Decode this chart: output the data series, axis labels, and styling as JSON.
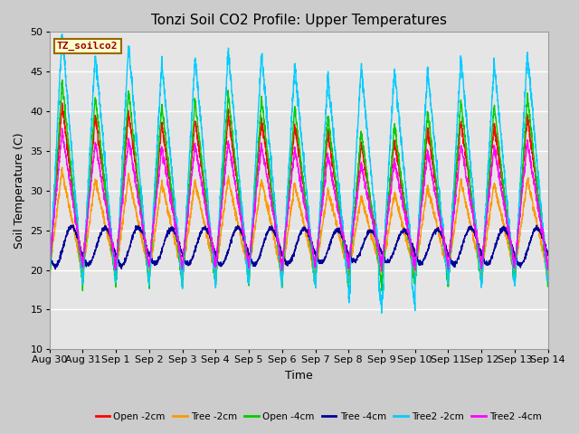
{
  "title": "Tonzi Soil CO2 Profile: Upper Temperatures",
  "xlabel": "Time",
  "ylabel": "Soil Temperature (C)",
  "ylim": [
    10,
    50
  ],
  "background_color": "#cccccc",
  "plot_bg_color": "#e5e5e5",
  "grid_color": "#ffffff",
  "label_box_text": "TZ_soilco2",
  "label_box_bg": "#ffffcc",
  "label_box_border": "#996600",
  "label_box_text_color": "#990000",
  "x_tick_labels": [
    "Aug 30",
    "Aug 31",
    "Sep 1",
    "Sep 2",
    "Sep 3",
    "Sep 4",
    "Sep 5",
    "Sep 6",
    "Sep 7",
    "Sep 8",
    "Sep 9",
    "Sep 10",
    "Sep 11",
    "Sep 12",
    "Sep 13",
    "Sep 14"
  ],
  "series": [
    {
      "label": "Open -2cm",
      "color": "#ff0000"
    },
    {
      "label": "Tree -2cm",
      "color": "#ff9900"
    },
    {
      "label": "Open -4cm",
      "color": "#00cc00"
    },
    {
      "label": "Tree -4cm",
      "color": "#000099"
    },
    {
      "label": "Tree2 -2cm",
      "color": "#00ccff"
    },
    {
      "label": "Tree2 -4cm",
      "color": "#ff00ff"
    }
  ],
  "days": 15,
  "title_fontsize": 11,
  "axis_fontsize": 9,
  "tick_fontsize": 8
}
